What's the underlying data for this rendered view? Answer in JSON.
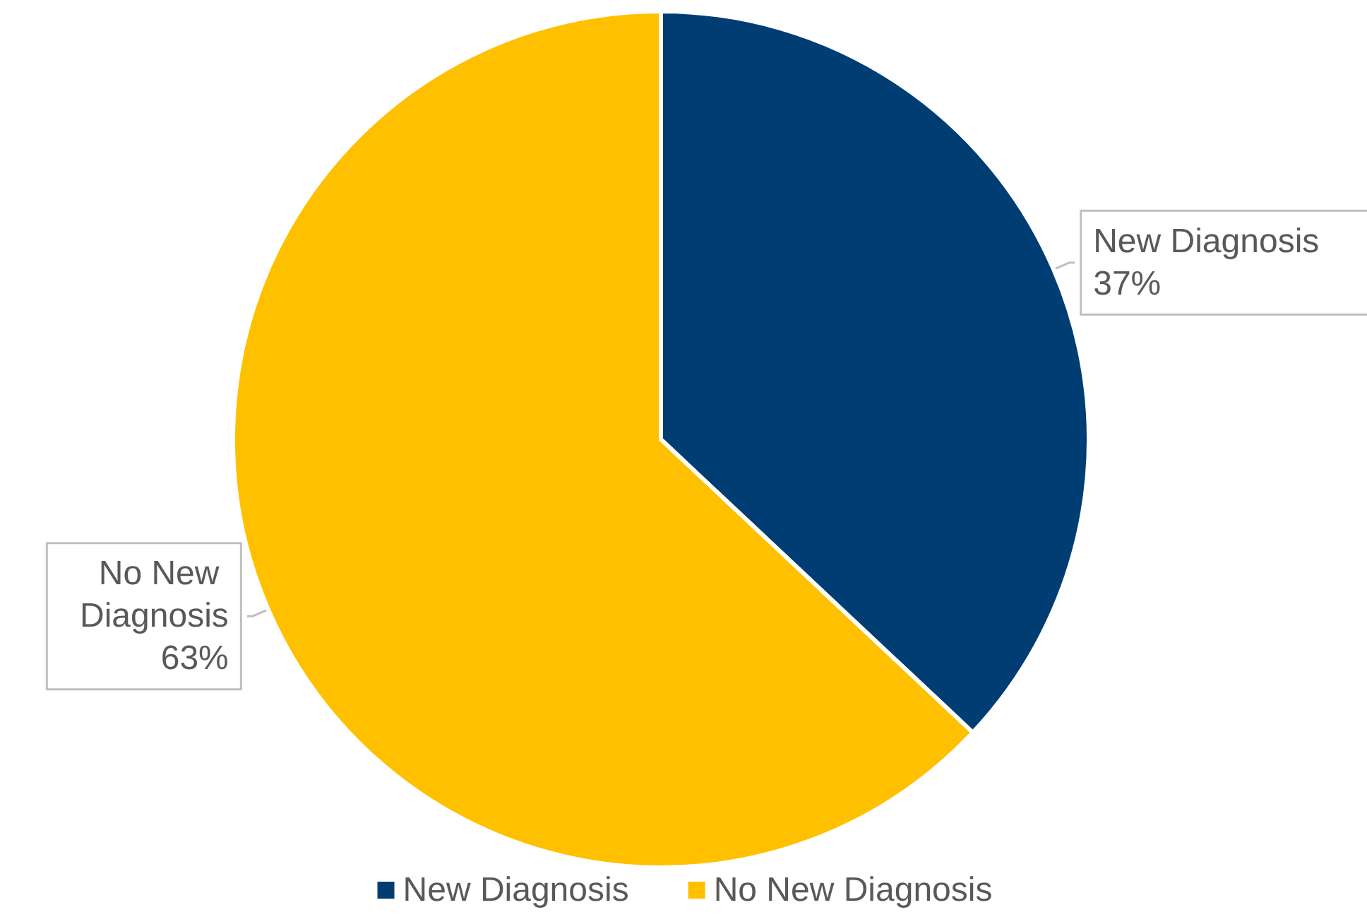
{
  "chart_data": {
    "type": "pie",
    "categories": [
      "New Diagnosis",
      "No New Diagnosis"
    ],
    "values": [
      37,
      63
    ],
    "colors": [
      "#003d73",
      "#ffc000"
    ],
    "value_labels": [
      "37%",
      "63%"
    ],
    "legend": "bottom"
  }
}
